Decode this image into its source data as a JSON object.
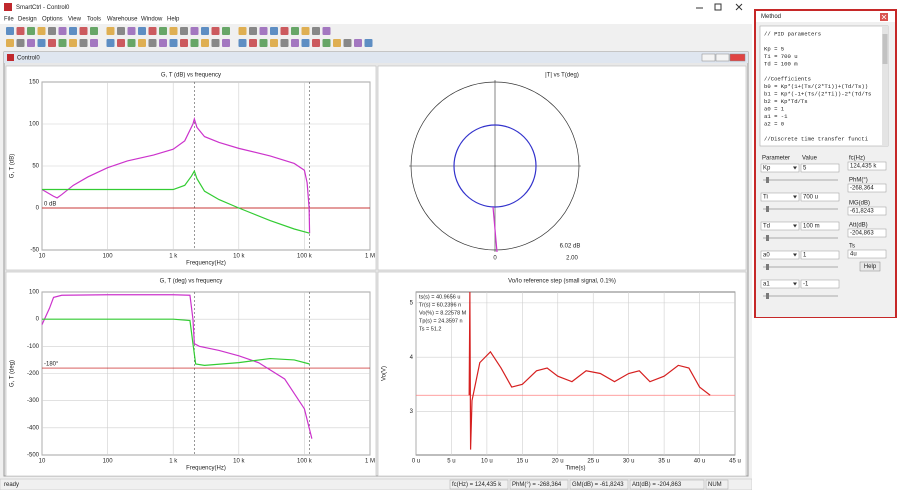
{
  "window": {
    "title": "SmartCtrl - Control0",
    "child_title": "Control0"
  },
  "menu": [
    "File",
    "Design",
    "Options",
    "View",
    "Tools",
    "Warehouse",
    "Window",
    "Help"
  ],
  "status_bar": [
    "ready",
    "fc(Hz) = 124,435 k",
    "PhM(°) = -268,364",
    "GM(dB) = -61,8243",
    "Att(dB) = -204,863",
    "NUM"
  ],
  "method_panel": {
    "title": "Method",
    "code": [
      [
        "// PID parameters"
      ],
      [
        "Kp = 5",
        "Ti = 700 u",
        "Td = 100 m"
      ],
      [
        "//Coefficients",
        "b0 = Kp*(1+(Ts/(2*Ti))+(Td/Ts))",
        "b1 = Kp*(-1+(Ts/(2*Ti))-2*(Td/Ts",
        "b2 = Kp*Td/Ts",
        "a0 = 1",
        "a1 = -1",
        "a2 = 0"
      ],
      [
        "//Discrete time transfer functi"
      ]
    ],
    "headers": [
      "Parameter",
      "Value"
    ],
    "parameters": [
      {
        "name": "Kp",
        "value": "5"
      },
      {
        "name": "Ti",
        "value": "700 u"
      },
      {
        "name": "Td",
        "value": "100 m"
      },
      {
        "name": "a0",
        "value": "1"
      },
      {
        "name": "a1",
        "value": "-1"
      }
    ],
    "results": [
      {
        "label": "fc(Hz)",
        "value": "124,435 k"
      },
      {
        "label": "PhM(°)",
        "value": "-268,364"
      },
      {
        "label": "MG(dB)",
        "value": "-61,8243"
      },
      {
        "label": "Att(dB)",
        "value": "-204,863"
      },
      {
        "label": "Ts",
        "value": "4u"
      }
    ],
    "help": "Help"
  },
  "chart_data": [
    {
      "type": "line",
      "title": "G, T (dB) vs frequency",
      "x_label": "Frequency(Hz)",
      "y_label": "G, T (dB)",
      "log_x": true,
      "grid": true,
      "xlim": [
        10,
        1000000
      ],
      "ylim": [
        -50,
        150
      ],
      "xticks": [
        10,
        100,
        {
          "value": 1000,
          "label": "1 k"
        },
        {
          "value": 10000,
          "label": "10 k"
        },
        {
          "value": 100000,
          "label": "100 k"
        },
        {
          "value": 1000000,
          "label": "1 M"
        }
      ],
      "yticks": [
        -50,
        0,
        50,
        100,
        150
      ],
      "markers_x": [
        2100,
        120000
      ],
      "reference": {
        "value": 0,
        "label": "0 dB",
        "color": "#c00000"
      },
      "series": [
        {
          "color": "#cc33cc",
          "x": [
            10,
            15,
            17,
            20,
            30,
            50,
            100,
            200,
            500,
            1000,
            1500,
            2000,
            2100,
            2300,
            3000,
            5000,
            10000,
            30000,
            70000,
            100000,
            110000,
            118000,
            120000
          ],
          "values": [
            22,
            14,
            12,
            16,
            27,
            37,
            48,
            56,
            63,
            70,
            80,
            100,
            106,
            96,
            85,
            78,
            71,
            62,
            53,
            45,
            30,
            0,
            -30
          ]
        },
        {
          "color": "#33cc33",
          "x": [
            10,
            100,
            1000,
            1500,
            1900,
            2100,
            2300,
            3000,
            5000,
            10000,
            30000,
            70000,
            120000
          ],
          "values": [
            22,
            22,
            22,
            27,
            38,
            44,
            35,
            20,
            10,
            0,
            -15,
            -25,
            -30
          ]
        }
      ]
    },
    {
      "type": "polar",
      "title": "|T| vs T(deg)",
      "annotations": [
        "6.02 dB",
        "0",
        "2.00"
      ]
    },
    {
      "type": "line",
      "title": "G, T (deg) vs frequency",
      "x_label": "Frequency(Hz)",
      "y_label": "G, T (deg)",
      "log_x": true,
      "grid": true,
      "xlim": [
        10,
        1000000
      ],
      "ylim": [
        -500,
        100
      ],
      "xticks": [
        10,
        100,
        {
          "value": 1000,
          "label": "1 k"
        },
        {
          "value": 10000,
          "label": "10 k"
        },
        {
          "value": 100000,
          "label": "100 k"
        },
        {
          "value": 1000000,
          "label": "1 M"
        }
      ],
      "yticks": [
        -500,
        -400,
        -300,
        -200,
        -100,
        0,
        100
      ],
      "markers_x": [
        2100,
        120000
      ],
      "reference": {
        "value": -180,
        "label": "-180°",
        "color": "#c00000"
      },
      "series": [
        {
          "color": "#cc33cc",
          "x": [
            10,
            13,
            15,
            20,
            100,
            1000,
            1800,
            2000,
            2100,
            2500,
            5000,
            10000,
            20000,
            50000,
            100000,
            130000
          ],
          "values": [
            -20,
            40,
            80,
            88,
            90,
            90,
            88,
            0,
            -90,
            -100,
            -115,
            -135,
            -160,
            -220,
            -330,
            -440
          ]
        },
        {
          "color": "#33cc33",
          "x": [
            10,
            100,
            1000,
            1800,
            2000,
            2200,
            3000,
            10000,
            30000,
            70000,
            120000
          ],
          "values": [
            0,
            0,
            0,
            -5,
            -90,
            -165,
            -170,
            -160,
            -145,
            -150,
            -165
          ]
        }
      ]
    },
    {
      "type": "line",
      "title": "Vo/Io reference step (small signal, 0.1%)",
      "x_label": "Time(s)",
      "y_label": "Vo(V)",
      "log_x": false,
      "grid": true,
      "xlim": [
        0,
        4.5e-05
      ],
      "ylim": [
        2.2,
        5.2
      ],
      "xticks": [
        {
          "value": 0,
          "label": "0 u"
        },
        {
          "value": 5e-06,
          "label": "5 u"
        },
        {
          "value": 1e-05,
          "label": "10 u"
        },
        {
          "value": 1.5e-05,
          "label": "15 u"
        },
        {
          "value": 2e-05,
          "label": "20 u"
        },
        {
          "value": 2.5e-05,
          "label": "25 u"
        },
        {
          "value": 3e-05,
          "label": "30 u"
        },
        {
          "value": 3.5e-05,
          "label": "35 u"
        },
        {
          "value": 4e-05,
          "label": "40 u"
        },
        {
          "value": 4.5e-05,
          "label": "45 u"
        }
      ],
      "yticks": [
        3,
        4,
        5
      ],
      "reference": {
        "value": 3.3,
        "color": "#ff8080"
      },
      "stats": [
        "ts(s) = 40.9656 u",
        "Tr(s) = 60.2396 n",
        "Vo(%) = 8.22578 M",
        "Tp(s) = 24.3597 n",
        "Ts = 51.2"
      ],
      "series": [
        {
          "color": "#d62020",
          "x": [
            7.5e-06,
            7.6e-06,
            7.7e-06,
            7.9e-06,
            9e-06,
            1.05e-05,
            1.2e-05,
            1.35e-05,
            1.5e-05,
            1.7e-05,
            1.85e-05,
            2e-05,
            2.2e-05,
            2.4e-05,
            2.6e-05,
            2.8e-05,
            3e-05,
            3.15e-05,
            3.3e-05,
            3.5e-05,
            3.7e-05,
            3.85e-05,
            4e-05,
            4.15e-05
          ],
          "values": [
            3.3,
            5.2,
            2.3,
            3.2,
            3.9,
            4.1,
            3.8,
            3.45,
            3.5,
            3.75,
            3.8,
            3.65,
            3.55,
            3.75,
            3.7,
            3.55,
            3.7,
            3.75,
            3.55,
            3.65,
            3.85,
            3.8,
            3.45,
            3.3
          ]
        }
      ]
    }
  ]
}
